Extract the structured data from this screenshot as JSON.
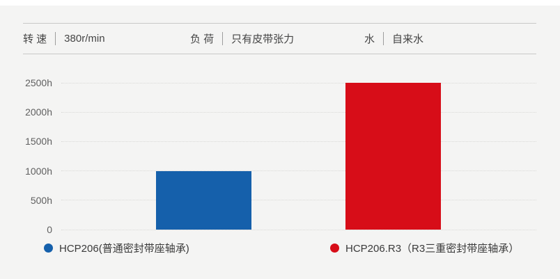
{
  "header": {
    "items": [
      {
        "label": "转 速",
        "value": "380r/min"
      },
      {
        "label": "负 荷",
        "value": "只有皮带张力"
      },
      {
        "label": "水",
        "value": "自来水"
      }
    ]
  },
  "chart_data": {
    "type": "bar",
    "title": "",
    "categories": [
      "HCP206(普通密封带座轴承)",
      "HCP206.R3（R3三重密封带座轴承）"
    ],
    "values": [
      1000,
      2500
    ],
    "unit": "h",
    "xlabel": "",
    "ylabel": "",
    "ylim": [
      0,
      2500
    ],
    "yticks": [
      0,
      500,
      1000,
      1500,
      2000,
      2500
    ],
    "ytick_labels": [
      "0",
      "500h",
      "1000h",
      "1500h",
      "2000h",
      "2500h"
    ],
    "grid": "horizontal-dotted",
    "legend_position": "bottom",
    "bar_colors": [
      "#1560ab",
      "#d70d18"
    ]
  },
  "colors": {
    "background": "#f4f4f3",
    "top_strip": "#ffffff",
    "header_line": "#c9c9c8",
    "grid_line": "#d9d9d7"
  }
}
